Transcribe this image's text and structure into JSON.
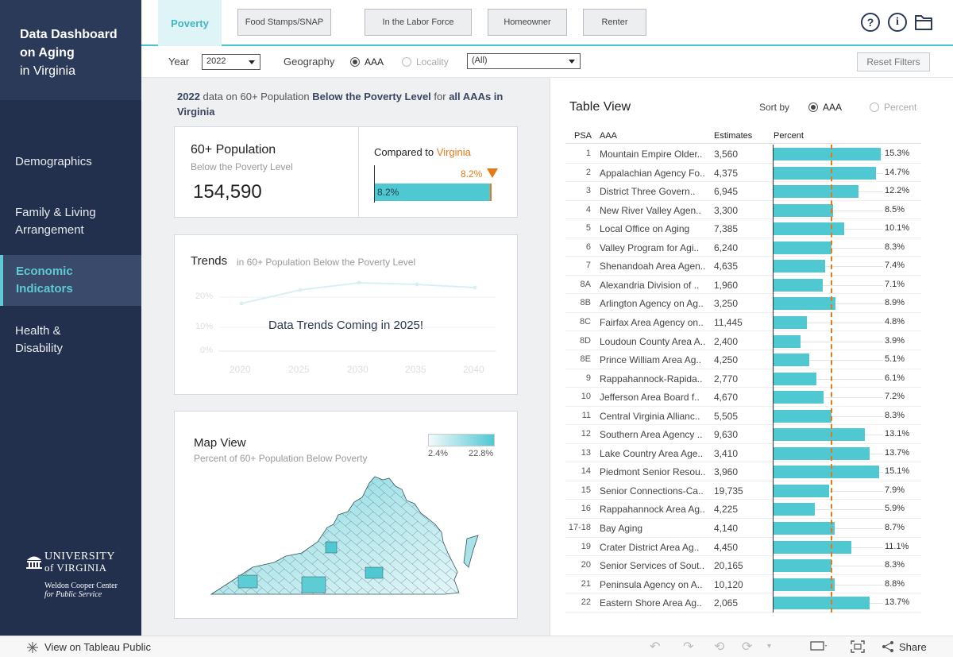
{
  "sidebar": {
    "title_line1": "Data Dashboard",
    "title_line2": "on Aging",
    "title_line3": "in Virginia",
    "items": [
      {
        "label": "Demographics"
      },
      {
        "label": "Family & Living Arrangement"
      },
      {
        "label": "Economic Indicators"
      },
      {
        "label": "Health & Disability"
      }
    ],
    "logo_line1": "UNIVERSITY",
    "logo_line2": "of VIRGINIA",
    "logo_line3": "Weldon Cooper Center",
    "logo_line4": "for Public Service"
  },
  "tabs": [
    {
      "label": "Poverty"
    },
    {
      "label": "Food Stamps/SNAP"
    },
    {
      "label": "In the Labor Force"
    },
    {
      "label": "Homeowner"
    },
    {
      "label": "Renter"
    }
  ],
  "top_icons": [
    "help-icon",
    "info-icon",
    "folder-icon"
  ],
  "filters": {
    "year_label": "Year",
    "year_value": "2022",
    "geography_label": "Geography",
    "geo_option_aaa": "AAA",
    "geo_option_locality": "Locality",
    "locality_value": "(All)",
    "reset_label": "Reset Filters"
  },
  "subtitle": {
    "year": "2022",
    "t1": " data on 60+ Population ",
    "measure": "Below the Poverty Level",
    "t2": " for ",
    "scope": "all AAAs in Virginia"
  },
  "kpi": {
    "title": "60+ Population",
    "subtitle": "Below the Poverty Level",
    "value": "154,590",
    "compare_prefix": "Compared to ",
    "compare_target": "Virginia",
    "marker_label": "8.2%",
    "bar_label": "8.2%",
    "bar_fraction": 0.99
  },
  "trends": {
    "title": "Trends",
    "subtitle": "in 60+ Population Below the Poverty Level",
    "overlay": "Data Trends Coming in 2025!",
    "yticks": [
      "20%",
      "10%",
      "0%"
    ],
    "xticks": [
      "2020",
      "2025",
      "2030",
      "2035",
      "2040"
    ]
  },
  "map": {
    "title": "Map View",
    "subtitle": "Percent of 60+ Population Below Poverty",
    "legend_min": "2.4%",
    "legend_max": "22.8%"
  },
  "table": {
    "title": "Table View",
    "sort_label": "Sort by",
    "sort_aaa": "AAA",
    "sort_percent": "Percent",
    "headers": {
      "psa": "PSA",
      "aaa": "AAA",
      "estimates": "Estimates",
      "percent": "Percent"
    },
    "reference_percent": 8.2,
    "rows": [
      {
        "psa": "1",
        "aaa": "Mountain Empire Older..",
        "estimates": "3,560",
        "pct": 15.3,
        "label": "15.3%"
      },
      {
        "psa": "2",
        "aaa": "Appalachian Agency Fo..",
        "estimates": "4,375",
        "pct": 14.7,
        "label": "14.7%"
      },
      {
        "psa": "3",
        "aaa": "District Three Govern..",
        "estimates": "6,945",
        "pct": 12.2,
        "label": "12.2%"
      },
      {
        "psa": "4",
        "aaa": "New River Valley Agen..",
        "estimates": "3,300",
        "pct": 8.5,
        "label": "8.5%"
      },
      {
        "psa": "5",
        "aaa": "Local Office on Aging",
        "estimates": "7,385",
        "pct": 10.1,
        "label": "10.1%"
      },
      {
        "psa": "6",
        "aaa": "Valley Program for Agi..",
        "estimates": "6,240",
        "pct": 8.3,
        "label": "8.3%"
      },
      {
        "psa": "7",
        "aaa": "Shenandoah Area Agen..",
        "estimates": "4,635",
        "pct": 7.4,
        "label": "7.4%"
      },
      {
        "psa": "8A",
        "aaa": "Alexandria Division of ..",
        "estimates": "1,960",
        "pct": 7.1,
        "label": "7.1%"
      },
      {
        "psa": "8B",
        "aaa": "Arlington Agency on Ag..",
        "estimates": "3,250",
        "pct": 8.9,
        "label": "8.9%"
      },
      {
        "psa": "8C",
        "aaa": "Fairfax Area Agency on..",
        "estimates": "11,445",
        "pct": 4.8,
        "label": "4.8%"
      },
      {
        "psa": "8D",
        "aaa": "Loudoun County Area A..",
        "estimates": "2,400",
        "pct": 3.9,
        "label": "3.9%"
      },
      {
        "psa": "8E",
        "aaa": "Prince William Area Ag..",
        "estimates": "4,250",
        "pct": 5.1,
        "label": "5.1%"
      },
      {
        "psa": "9",
        "aaa": "Rappahannock-Rapida..",
        "estimates": "2,770",
        "pct": 6.1,
        "label": "6.1%"
      },
      {
        "psa": "10",
        "aaa": "Jefferson Area Board f..",
        "estimates": "4,670",
        "pct": 7.2,
        "label": "7.2%"
      },
      {
        "psa": "11",
        "aaa": "Central Virginia Allianc..",
        "estimates": "5,505",
        "pct": 8.3,
        "label": "8.3%"
      },
      {
        "psa": "12",
        "aaa": "Southern Area Agency ..",
        "estimates": "9,630",
        "pct": 13.1,
        "label": "13.1%"
      },
      {
        "psa": "13",
        "aaa": "Lake Country Area Age..",
        "estimates": "3,410",
        "pct": 13.7,
        "label": "13.7%"
      },
      {
        "psa": "14",
        "aaa": "Piedmont Senior Resou..",
        "estimates": "3,960",
        "pct": 15.1,
        "label": "15.1%"
      },
      {
        "psa": "15",
        "aaa": "Senior Connections-Ca..",
        "estimates": "19,735",
        "pct": 7.9,
        "label": "7.9%"
      },
      {
        "psa": "16",
        "aaa": "Rappahannock Area Ag..",
        "estimates": "4,225",
        "pct": 5.9,
        "label": "5.9%"
      },
      {
        "psa": "17-18",
        "aaa": "Bay Aging",
        "estimates": "4,140",
        "pct": 8.7,
        "label": "8.7%"
      },
      {
        "psa": "19",
        "aaa": "Crater District Area Ag..",
        "estimates": "4,450",
        "pct": 11.1,
        "label": "11.1%"
      },
      {
        "psa": "20",
        "aaa": "Senior Services of Sout..",
        "estimates": "20,165",
        "pct": 8.3,
        "label": "8.3%"
      },
      {
        "psa": "21",
        "aaa": "Peninsula Agency on A..",
        "estimates": "10,120",
        "pct": 8.8,
        "label": "8.8%"
      },
      {
        "psa": "22",
        "aaa": "Eastern Shore Area Ag..",
        "estimates": "2,065",
        "pct": 13.7,
        "label": "13.7%"
      }
    ]
  },
  "footer": {
    "tableau_link": "View on Tableau Public",
    "share_label": "Share"
  },
  "colors": {
    "navy": "#23304d",
    "teal": "#4fc8d2",
    "orange": "#e07b18",
    "accent_text": "#5fc9d4"
  }
}
